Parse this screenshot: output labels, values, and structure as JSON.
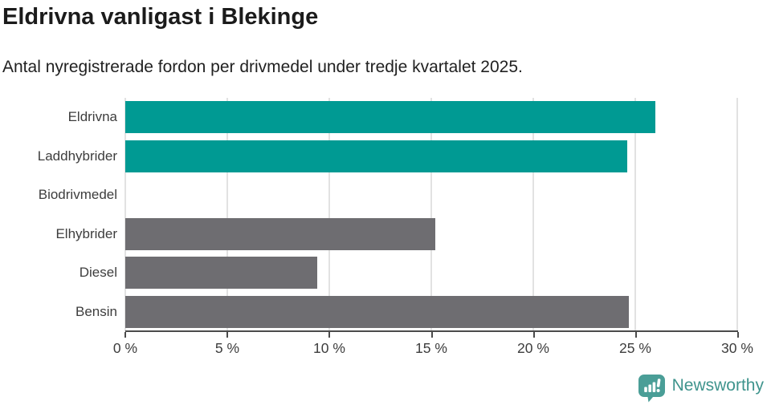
{
  "header": {
    "title": "Eldrivna vanligast i Blekinge",
    "subtitle": "Antal nyregistrerade fordon per drivmedel under tredje kvartalet 2025."
  },
  "chart_data": {
    "type": "bar",
    "orientation": "horizontal",
    "title": "Eldrivna vanligast i Blekinge",
    "subtitle": "Antal nyregistrerade fordon per drivmedel under tredje kvartalet 2025.",
    "categories": [
      "Eldrivna",
      "Laddhybrider",
      "Biodrivmedel",
      "Elhybrider",
      "Diesel",
      "Bensin"
    ],
    "values": [
      26.0,
      24.6,
      0,
      15.2,
      9.4,
      24.7
    ],
    "unit": "%",
    "xlabel": "",
    "ylabel": "",
    "xlim": [
      0,
      30
    ],
    "x_ticks": [
      0,
      5,
      10,
      15,
      20,
      25,
      30
    ],
    "x_tick_labels": [
      "0 %",
      "5 %",
      "10 %",
      "15 %",
      "20 %",
      "25 %",
      "30 %"
    ],
    "grid": true,
    "legend": false,
    "bar_colors": [
      "#009a93",
      "#009a93",
      "#6e6d71",
      "#6e6d71",
      "#6e6d71",
      "#6e6d71"
    ],
    "colors": {
      "highlight": "#009a93",
      "default": "#6e6d71",
      "gridline": "#e2e2e2",
      "axis": "#4b4b4b"
    }
  },
  "footer": {
    "brand": "Newsworthy",
    "brand_color": "#3f948d",
    "logo_icon_color": "#4a9e97"
  }
}
